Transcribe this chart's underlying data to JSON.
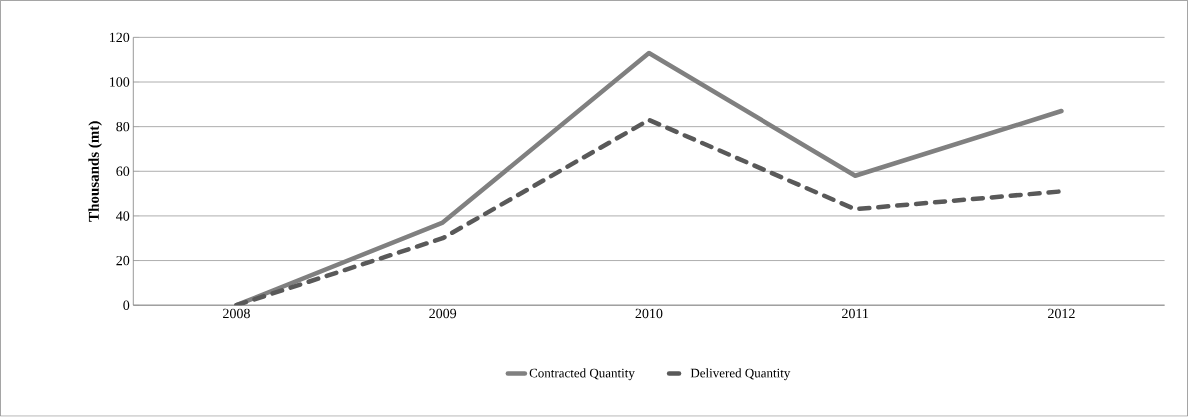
{
  "chart_data": {
    "type": "line",
    "ylabel": "Thousands (mt)",
    "categories": [
      "2008",
      "2009",
      "2010",
      "2011",
      "2012"
    ],
    "series": [
      {
        "name": "Contracted Quantity",
        "color": "#808080",
        "line_style": "solid",
        "values": [
          0,
          37,
          113,
          58,
          87
        ]
      },
      {
        "name": "Delivered Quantity",
        "color": "#595959",
        "line_style": "dashed",
        "values": [
          0,
          30,
          83,
          43,
          51
        ]
      }
    ],
    "ylim": [
      0,
      120
    ],
    "yticks": [
      0,
      20,
      40,
      60,
      80,
      100,
      120
    ],
    "grid": "y",
    "legend": "bottom",
    "marker": "none"
  }
}
